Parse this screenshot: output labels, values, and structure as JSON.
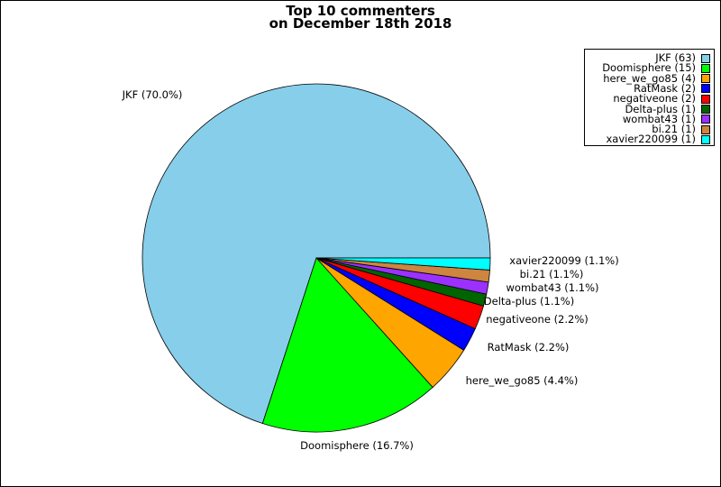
{
  "chart_data": {
    "type": "pie",
    "title": [
      "Top 10 commenters",
      "on December 18th 2018"
    ],
    "slices": [
      {
        "name": "JKF",
        "count": 63,
        "percent": 70.0,
        "color": "#87ceeb",
        "legend": "JKF (63)",
        "label": "JKF (70.0%)"
      },
      {
        "name": "Doomisphere",
        "count": 15,
        "percent": 16.7,
        "color": "#00ff00",
        "legend": "Doomisphere (15)",
        "label": "Doomisphere (16.7%)"
      },
      {
        "name": "here_we_go85",
        "count": 4,
        "percent": 4.4,
        "color": "#ffa500",
        "legend": "here_we_go85 (4)",
        "label": "here_we_go85 (4.4%)"
      },
      {
        "name": "RatMask",
        "count": 2,
        "percent": 2.2,
        "color": "#0000ff",
        "legend": "RatMask (2)",
        "label": "RatMask (2.2%)"
      },
      {
        "name": "negativeone",
        "count": 2,
        "percent": 2.2,
        "color": "#ff0000",
        "legend": "negativeone (2)",
        "label": "negativeone (2.2%)"
      },
      {
        "name": "Delta-plus",
        "count": 1,
        "percent": 1.1,
        "color": "#006400",
        "legend": "Delta-plus (1)",
        "label": "Delta-plus (1.1%)"
      },
      {
        "name": "wombat43",
        "count": 1,
        "percent": 1.1,
        "color": "#9b30ff",
        "legend": "wombat43 (1)",
        "label": "wombat43 (1.1%)"
      },
      {
        "name": "bi.21",
        "count": 1,
        "percent": 1.1,
        "color": "#cd853f",
        "legend": "bi.21 (1)",
        "label": "bi.21 (1.1%)"
      },
      {
        "name": "xavier220099",
        "count": 1,
        "percent": 1.1,
        "color": "#00ffff",
        "legend": "xavier220099 (1)",
        "label": "xavier220099 (1.1%)"
      }
    ],
    "legend_position": "top-right"
  }
}
